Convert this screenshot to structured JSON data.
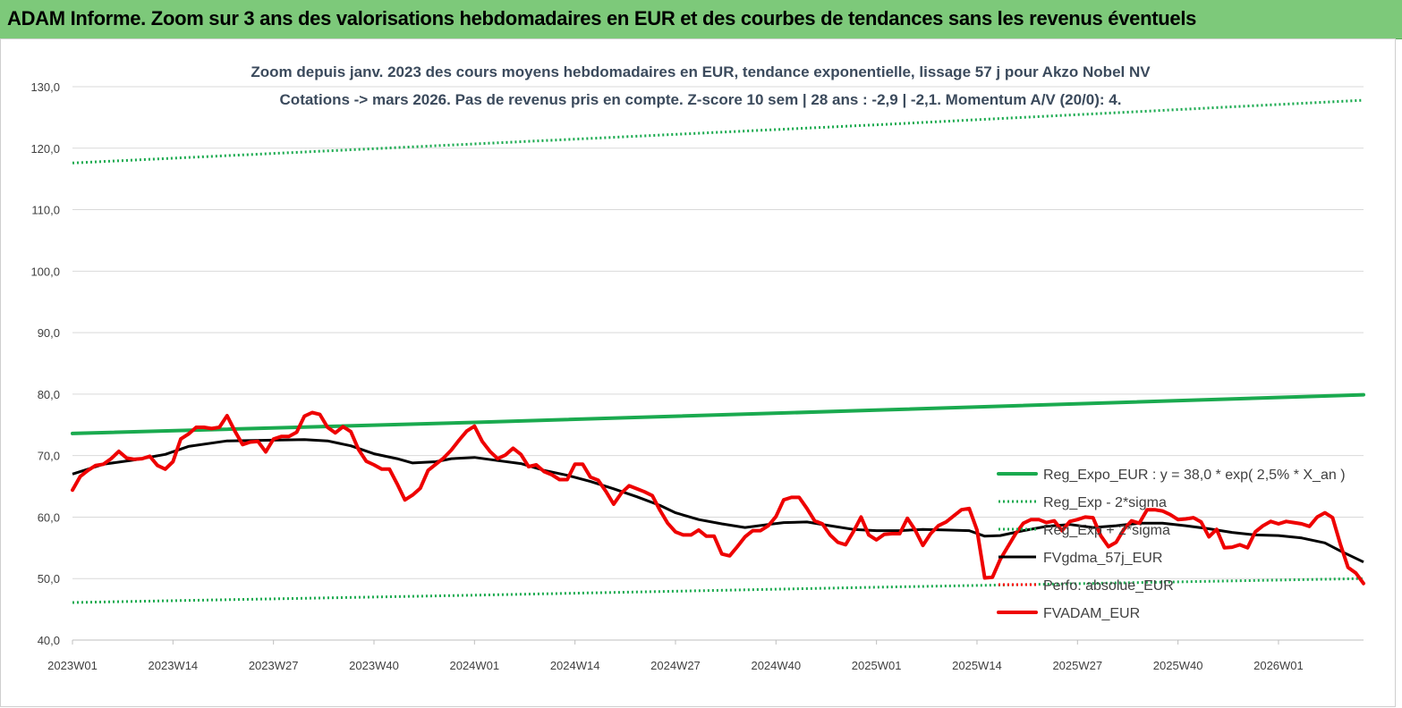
{
  "banner": {
    "title": "ADAM Informe. Zoom sur 3 ans des valorisations hebdomadaires en EUR et des courbes de tendances sans les revenus éventuels"
  },
  "chart_data": {
    "type": "line",
    "title": "Zoom depuis janv. 2023 des cours moyens hebdomadaires en EUR, tendance exponentielle, lissage 57 j pour Akzo Nobel NV",
    "subtitle": "Cotations -> mars 2026. Pas de revenus pris en compte. Z-score 10 sem  | 28 ans : -2,9 | -2,1. Momentum A/V (20/0): 4.",
    "xlabel": "",
    "ylabel": "",
    "ylim": [
      40,
      130
    ],
    "yticks": [
      "130,0",
      "120,0",
      "110,0",
      "100,0",
      "90,0",
      "80,0",
      "70,0",
      "60,0",
      "50,0",
      "40,0"
    ],
    "xlim": [
      0,
      167
    ],
    "xticks": [
      {
        "x": 0,
        "label": "2023W01"
      },
      {
        "x": 13,
        "label": "2023W14"
      },
      {
        "x": 26,
        "label": "2023W27"
      },
      {
        "x": 39,
        "label": "2023W40"
      },
      {
        "x": 52,
        "label": "2024W01"
      },
      {
        "x": 65,
        "label": "2024W14"
      },
      {
        "x": 78,
        "label": "2024W27"
      },
      {
        "x": 91,
        "label": "2024W40"
      },
      {
        "x": 104,
        "label": "2025W01"
      },
      {
        "x": 117,
        "label": "2025W14"
      },
      {
        "x": 130,
        "label": "2025W27"
      },
      {
        "x": 143,
        "label": "2025W40"
      },
      {
        "x": 156,
        "label": "2026W01"
      }
    ],
    "grid": "horizontal",
    "legend_position": "right-bottom",
    "series": [
      {
        "name": "Reg_Expo_EUR : y = 38,0 * exp( 2,5% *  X_an )",
        "color": "#1aaa4f",
        "style": "solid-thick",
        "points": [
          [
            0,
            73.6
          ],
          [
            52,
            75.4
          ],
          [
            104,
            77.4
          ],
          [
            167,
            79.9
          ]
        ]
      },
      {
        "name": "Reg_Exp - 2*sigma",
        "color": "#1aaa4f",
        "style": "dotted",
        "points": [
          [
            0,
            46.1
          ],
          [
            52,
            47.3
          ],
          [
            104,
            48.6
          ],
          [
            167,
            50.0
          ]
        ]
      },
      {
        "name": "Reg_Exp + 2*sigma",
        "color": "#1aaa4f",
        "style": "dotted",
        "points": [
          [
            0,
            117.6
          ],
          [
            52,
            120.7
          ],
          [
            104,
            123.8
          ],
          [
            167,
            127.8
          ]
        ]
      },
      {
        "name": "FVgdma_57j_EUR",
        "color": "#000000",
        "style": "solid",
        "points": [
          [
            0,
            67.0
          ],
          [
            4,
            68.6
          ],
          [
            8,
            69.3
          ],
          [
            12,
            70.2
          ],
          [
            15,
            71.5
          ],
          [
            20,
            72.4
          ],
          [
            25,
            72.5
          ],
          [
            30,
            72.6
          ],
          [
            33,
            72.4
          ],
          [
            36,
            71.6
          ],
          [
            39,
            70.3
          ],
          [
            42,
            69.5
          ],
          [
            44,
            68.8
          ],
          [
            47,
            69.0
          ],
          [
            49,
            69.5
          ],
          [
            52,
            69.7
          ],
          [
            55,
            69.2
          ],
          [
            58,
            68.7
          ],
          [
            61,
            67.6
          ],
          [
            64,
            66.8
          ],
          [
            67,
            65.8
          ],
          [
            70,
            64.6
          ],
          [
            73,
            63.3
          ],
          [
            76,
            61.9
          ],
          [
            78,
            60.7
          ],
          [
            81,
            59.6
          ],
          [
            84,
            58.9
          ],
          [
            87,
            58.3
          ],
          [
            90,
            58.8
          ],
          [
            92,
            59.1
          ],
          [
            95,
            59.2
          ],
          [
            98,
            58.6
          ],
          [
            101,
            58.0
          ],
          [
            104,
            57.8
          ],
          [
            107,
            57.8
          ],
          [
            110,
            58.0
          ],
          [
            113,
            57.9
          ],
          [
            116,
            57.8
          ],
          [
            118,
            56.9
          ],
          [
            120,
            57.0
          ],
          [
            123,
            57.8
          ],
          [
            126,
            58.5
          ],
          [
            129,
            58.8
          ],
          [
            132,
            58.3
          ],
          [
            135,
            58.6
          ],
          [
            138,
            59.0
          ],
          [
            141,
            59.0
          ],
          [
            144,
            58.6
          ],
          [
            147,
            58.1
          ],
          [
            150,
            57.5
          ],
          [
            153,
            57.1
          ],
          [
            156,
            57.0
          ],
          [
            159,
            56.6
          ],
          [
            162,
            55.8
          ],
          [
            164,
            54.5
          ],
          [
            167,
            52.7
          ]
        ]
      },
      {
        "name": "Perfo. absolue_EUR",
        "color": "#ff0000",
        "style": "dotted",
        "points": []
      },
      {
        "name": "FVADAM_EUR",
        "color": "#ee0000",
        "style": "solid-thick",
        "points": [
          [
            0,
            64.4
          ],
          [
            1,
            66.6
          ],
          [
            2,
            67.6
          ],
          [
            3,
            68.4
          ],
          [
            4,
            68.6
          ],
          [
            5,
            69.5
          ],
          [
            6,
            70.7
          ],
          [
            7,
            69.6
          ],
          [
            8,
            69.4
          ],
          [
            9,
            69.5
          ],
          [
            10,
            69.9
          ],
          [
            11,
            68.4
          ],
          [
            12,
            67.8
          ],
          [
            13,
            69.0
          ],
          [
            14,
            72.7
          ],
          [
            15,
            73.5
          ],
          [
            16,
            74.6
          ],
          [
            17,
            74.6
          ],
          [
            18,
            74.4
          ],
          [
            19,
            74.6
          ],
          [
            20,
            76.5
          ],
          [
            21,
            74.0
          ],
          [
            22,
            71.8
          ],
          [
            23,
            72.2
          ],
          [
            24,
            72.3
          ],
          [
            25,
            70.6
          ],
          [
            26,
            72.7
          ],
          [
            27,
            73.1
          ],
          [
            28,
            73.1
          ],
          [
            29,
            73.8
          ],
          [
            30,
            76.4
          ],
          [
            31,
            77.0
          ],
          [
            32,
            76.7
          ],
          [
            33,
            74.6
          ],
          [
            34,
            73.7
          ],
          [
            35,
            74.7
          ],
          [
            36,
            73.9
          ],
          [
            37,
            71.0
          ],
          [
            38,
            69.1
          ],
          [
            39,
            68.5
          ],
          [
            40,
            67.8
          ],
          [
            41,
            67.8
          ],
          [
            42,
            65.4
          ],
          [
            43,
            62.8
          ],
          [
            44,
            63.6
          ],
          [
            45,
            64.7
          ],
          [
            46,
            67.6
          ],
          [
            47,
            68.6
          ],
          [
            48,
            69.6
          ],
          [
            49,
            70.9
          ],
          [
            50,
            72.5
          ],
          [
            51,
            74.0
          ],
          [
            52,
            74.8
          ],
          [
            53,
            72.3
          ],
          [
            54,
            70.7
          ],
          [
            55,
            69.5
          ],
          [
            56,
            70.1
          ],
          [
            57,
            71.2
          ],
          [
            58,
            70.2
          ],
          [
            59,
            68.2
          ],
          [
            60,
            68.5
          ],
          [
            61,
            67.4
          ],
          [
            62,
            66.9
          ],
          [
            63,
            66.1
          ],
          [
            64,
            66.1
          ],
          [
            65,
            68.6
          ],
          [
            66,
            68.6
          ],
          [
            67,
            66.5
          ],
          [
            68,
            66.0
          ],
          [
            69,
            64.2
          ],
          [
            70,
            62.1
          ],
          [
            71,
            63.9
          ],
          [
            72,
            65.1
          ],
          [
            73,
            64.6
          ],
          [
            74,
            64.1
          ],
          [
            75,
            63.5
          ],
          [
            76,
            61.1
          ],
          [
            77,
            59.0
          ],
          [
            78,
            57.6
          ],
          [
            79,
            57.1
          ],
          [
            80,
            57.1
          ],
          [
            81,
            57.9
          ],
          [
            82,
            56.9
          ],
          [
            83,
            56.9
          ],
          [
            84,
            54.0
          ],
          [
            85,
            53.7
          ],
          [
            86,
            55.2
          ],
          [
            87,
            56.8
          ],
          [
            88,
            57.8
          ],
          [
            89,
            57.8
          ],
          [
            90,
            58.6
          ],
          [
            91,
            60.1
          ],
          [
            92,
            62.8
          ],
          [
            93,
            63.2
          ],
          [
            94,
            63.2
          ],
          [
            95,
            61.4
          ],
          [
            96,
            59.4
          ],
          [
            97,
            58.9
          ],
          [
            98,
            57.1
          ],
          [
            99,
            55.9
          ],
          [
            100,
            55.5
          ],
          [
            101,
            57.6
          ],
          [
            102,
            60.0
          ],
          [
            103,
            57.1
          ],
          [
            104,
            56.3
          ],
          [
            105,
            57.2
          ],
          [
            106,
            57.3
          ],
          [
            107,
            57.3
          ],
          [
            108,
            59.8
          ],
          [
            109,
            57.9
          ],
          [
            110,
            55.4
          ],
          [
            111,
            57.3
          ],
          [
            112,
            58.6
          ],
          [
            113,
            59.2
          ],
          [
            114,
            60.2
          ],
          [
            115,
            61.2
          ],
          [
            116,
            61.4
          ],
          [
            117,
            57.9
          ],
          [
            118,
            50.1
          ],
          [
            119,
            50.2
          ],
          [
            120,
            53.1
          ],
          [
            121,
            55.2
          ],
          [
            122,
            57.3
          ],
          [
            123,
            59.0
          ],
          [
            124,
            59.6
          ],
          [
            125,
            59.6
          ],
          [
            126,
            59.1
          ],
          [
            127,
            59.4
          ],
          [
            128,
            57.8
          ],
          [
            129,
            59.3
          ],
          [
            130,
            59.6
          ],
          [
            131,
            60.0
          ],
          [
            132,
            59.9
          ],
          [
            133,
            57.0
          ],
          [
            134,
            55.2
          ],
          [
            135,
            55.9
          ],
          [
            136,
            58.0
          ],
          [
            137,
            59.4
          ],
          [
            138,
            59.0
          ],
          [
            139,
            61.2
          ],
          [
            140,
            61.2
          ],
          [
            141,
            61.0
          ],
          [
            142,
            60.4
          ],
          [
            143,
            59.6
          ],
          [
            144,
            59.7
          ],
          [
            145,
            59.9
          ],
          [
            146,
            59.2
          ],
          [
            147,
            56.8
          ],
          [
            148,
            58.0
          ],
          [
            149,
            55.0
          ],
          [
            150,
            55.1
          ],
          [
            151,
            55.5
          ],
          [
            152,
            55.0
          ],
          [
            153,
            57.6
          ],
          [
            154,
            58.6
          ],
          [
            155,
            59.3
          ],
          [
            156,
            58.9
          ],
          [
            157,
            59.3
          ],
          [
            158,
            59.1
          ],
          [
            159,
            58.9
          ],
          [
            160,
            58.5
          ],
          [
            161,
            60.0
          ],
          [
            162,
            60.7
          ],
          [
            163,
            59.9
          ],
          [
            164,
            55.6
          ],
          [
            165,
            51.8
          ],
          [
            166,
            50.9
          ],
          [
            167,
            49.2
          ]
        ]
      }
    ]
  }
}
